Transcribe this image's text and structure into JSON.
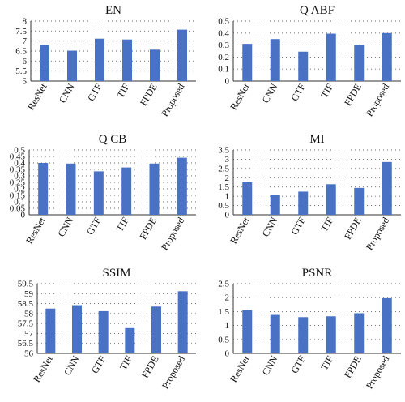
{
  "chart_data": [
    {
      "type": "bar",
      "title": "EN",
      "categories": [
        "ResNet",
        "CNN",
        "GTF",
        "TIF",
        "FPDE",
        "Proposed"
      ],
      "values": [
        6.8,
        6.52,
        7.12,
        7.08,
        6.57,
        7.57
      ],
      "ylim": [
        5,
        8
      ],
      "yticks": [
        "5",
        "5.5",
        "6",
        "6.5",
        "7",
        "7.5",
        "8"
      ],
      "grid": true,
      "color": "#4a72c4"
    },
    {
      "type": "bar",
      "title": "Q ABF",
      "categories": [
        "ResNet",
        "CNN",
        "GTF",
        "TIF",
        "FPDE",
        "Proposed"
      ],
      "values": [
        0.31,
        0.35,
        0.245,
        0.395,
        0.3,
        0.4
      ],
      "ylim": [
        0,
        0.5
      ],
      "yticks": [
        "0",
        "0.1",
        "0.2",
        "0.3",
        "0.4",
        "0.5"
      ],
      "grid": true,
      "color": "#4a72c4"
    },
    {
      "type": "bar",
      "title": "Q CB",
      "categories": [
        "ResNet",
        "CNN",
        "GTF",
        "TIF",
        "FPDE",
        "Proposed"
      ],
      "values": [
        0.4,
        0.395,
        0.335,
        0.365,
        0.395,
        0.44
      ],
      "ylim": [
        0,
        0.5
      ],
      "yticks": [
        "0",
        "0.05",
        "0.1",
        "0.15",
        "0.2",
        "0.25",
        "0.3",
        "0.35",
        "0.4",
        "0.45",
        "0.5"
      ],
      "grid": true,
      "color": "#4a72c4"
    },
    {
      "type": "bar",
      "title": "MI",
      "categories": [
        "ResNet",
        "CNN",
        "GTF",
        "TIF",
        "FPDE",
        "Proposed"
      ],
      "values": [
        1.75,
        1.05,
        1.25,
        1.65,
        1.45,
        2.85
      ],
      "ylim": [
        0,
        3.5
      ],
      "yticks": [
        "0",
        "0.5",
        "1",
        "1.5",
        "2",
        "2.5",
        "3",
        "3.5"
      ],
      "grid": true,
      "color": "#4a72c4"
    },
    {
      "type": "bar",
      "title": "SSIM",
      "categories": [
        "ResNet",
        "CNN",
        "GTF",
        "TIF",
        "FPDE",
        "Proposed"
      ],
      "values": [
        58.25,
        58.42,
        58.12,
        57.27,
        58.35,
        59.12
      ],
      "ylim": [
        56,
        59.5
      ],
      "yticks": [
        "56",
        "56.5",
        "57",
        "57.5",
        "58",
        "58.5",
        "59",
        "59.5"
      ],
      "grid": true,
      "color": "#4a72c4"
    },
    {
      "type": "bar",
      "title": "PSNR",
      "categories": [
        "ResNet",
        "CNN",
        "GTF",
        "TIF",
        "FPDE",
        "Proposed"
      ],
      "values": [
        1.55,
        1.38,
        1.3,
        1.33,
        1.44,
        1.98
      ],
      "ylim": [
        0,
        2.5
      ],
      "yticks": [
        "0",
        "0.5",
        "1",
        "1.5",
        "2",
        "2.5"
      ],
      "grid": true,
      "color": "#4a72c4"
    }
  ]
}
